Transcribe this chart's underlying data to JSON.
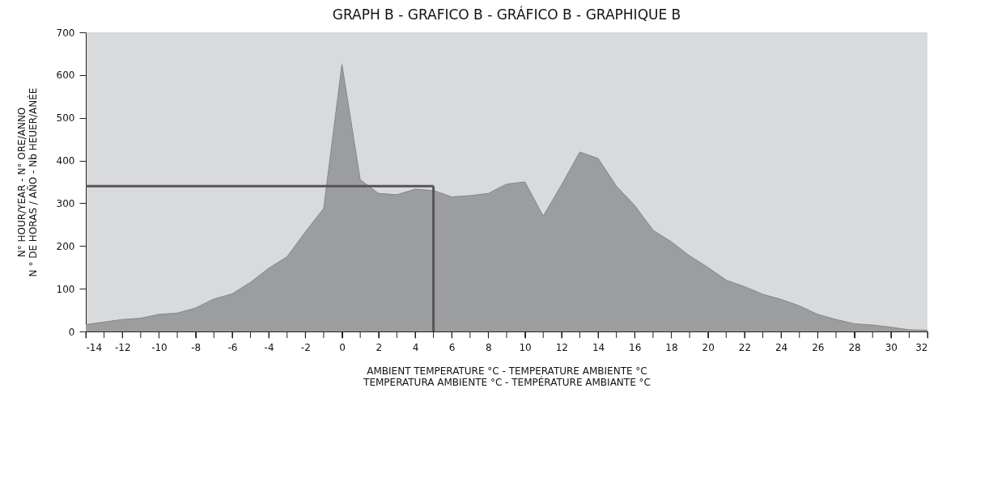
{
  "chart_data": {
    "type": "area",
    "title": "GRAPH B - GRAFICO B - GRÁFICO  B - GRAPHIQUE B",
    "xlabel": "AMBIENT TEMPERATURE °C - TEMPERATURE AMBIENTE °C\nTEMPERATURA AMBIENTE °C - TEMPÉRATURE AMBIANTE °C",
    "ylabel": "N° HOUR/YEAR - N° ORE/ANNO\nN ° DE HORAS / AÑO - Nb HEUER/ANÉE",
    "x": [
      -14,
      -13,
      -12,
      -11,
      -10,
      -9,
      -8,
      -7,
      -6,
      -5,
      -4,
      -3,
      -2,
      -1,
      0,
      1,
      2,
      3,
      4,
      5,
      6,
      7,
      8,
      9,
      10,
      11,
      12,
      13,
      14,
      15,
      16,
      17,
      18,
      19,
      20,
      21,
      22,
      23,
      24,
      25,
      26,
      27,
      28,
      29,
      30,
      31,
      32
    ],
    "series": [
      {
        "color": "#9c9d9f",
        "values": [
          16,
          22,
          28,
          31,
          40,
          43,
          55,
          76,
          88,
          115,
          148,
          175,
          233,
          288,
          625,
          355,
          323,
          320,
          333,
          330,
          315,
          318,
          323,
          345,
          350,
          270,
          343,
          420,
          405,
          340,
          295,
          237,
          210,
          177,
          150,
          120,
          105,
          87,
          75,
          60,
          40,
          28,
          18,
          15,
          10,
          4,
          3
        ]
      }
    ],
    "xlim": [
      -14,
      32
    ],
    "xticks": [
      -14,
      {
        "value": -13,
        "label": null
      },
      -12,
      {
        "value": -11,
        "label": null
      },
      -10,
      {
        "value": -9,
        "label": null
      },
      -8,
      {
        "value": -7,
        "label": null
      },
      -6,
      {
        "value": -5,
        "label": null
      },
      -4,
      {
        "value": -3,
        "label": null
      },
      -2,
      {
        "value": -1,
        "label": null
      },
      0,
      {
        "value": 1,
        "label": null
      },
      2,
      {
        "value": 3,
        "label": null
      },
      4,
      {
        "value": 5,
        "label": null
      },
      6,
      {
        "value": 7,
        "label": null
      },
      8,
      {
        "value": 9,
        "label": null
      },
      10,
      {
        "value": 11,
        "label": null
      },
      12,
      {
        "value": 13,
        "label": null
      },
      14,
      {
        "value": 15,
        "label": null
      },
      16,
      {
        "value": 17,
        "label": null
      },
      18,
      {
        "value": 19,
        "label": null
      },
      20,
      {
        "value": 21,
        "label": null
      },
      22,
      {
        "value": 23,
        "label": null
      },
      24,
      {
        "value": 25,
        "label": null
      },
      26,
      {
        "value": 27,
        "label": null
      },
      28,
      {
        "value": 29,
        "label": null
      },
      30,
      {
        "value": 31,
        "label": null
      },
      32
    ],
    "ylim": [
      0,
      700
    ],
    "yticks": [
      0,
      100,
      200,
      300,
      400,
      500,
      600,
      700
    ],
    "ref_lines": [
      {
        "axis": "y",
        "value": 340,
        "color": "#555557"
      },
      {
        "axis": "x",
        "value": 5,
        "color": "#555557"
      }
    ],
    "grid": false
  }
}
